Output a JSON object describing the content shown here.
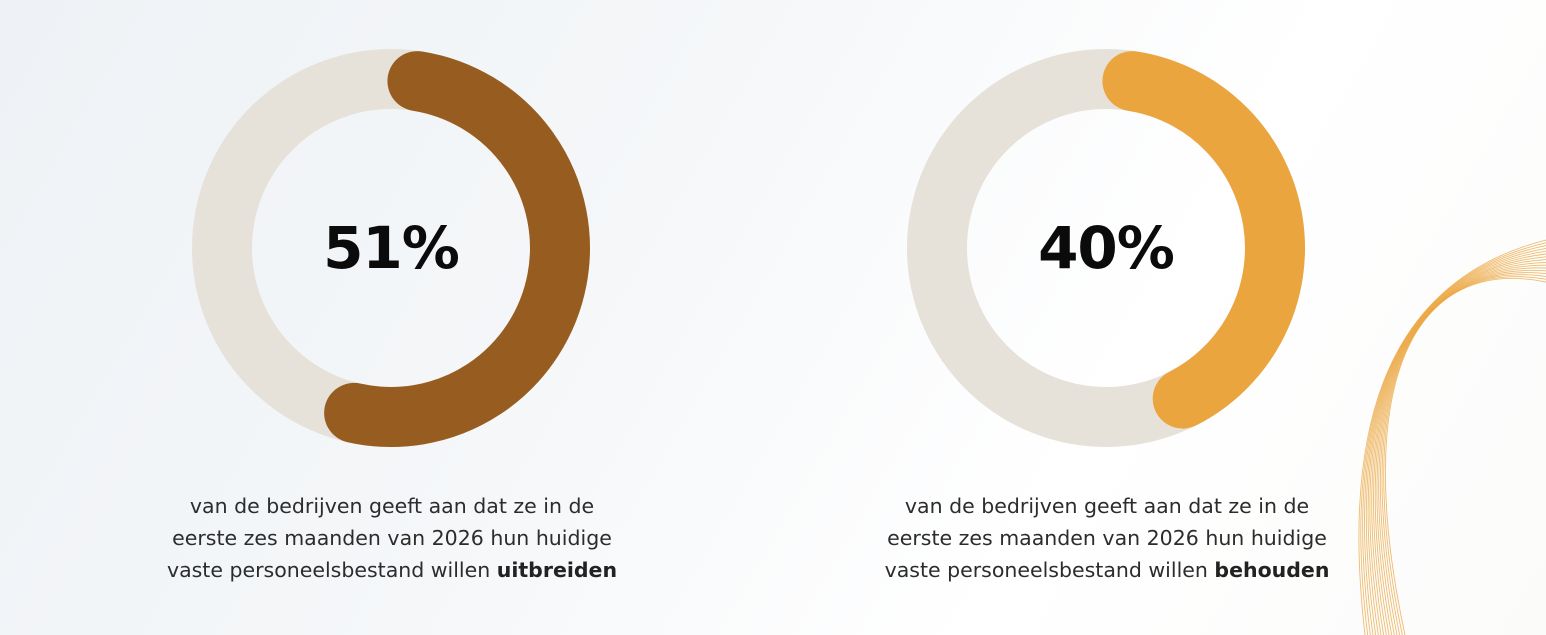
{
  "colors": {
    "track": "#e6e2da",
    "series_0": "#975c1f",
    "series_1": "#eba53f",
    "waves": "#eba53f"
  },
  "chart_data": [
    {
      "type": "pie",
      "style": "donut",
      "value": 51,
      "max": 100,
      "percent_label": "51%",
      "color": "#975c1f",
      "caption": {
        "text": "van de bedrijven geeft aan dat ze in de\neerste zes maanden van 2026 hun huidige\nvaste personeelsbestand willen ",
        "bold": "uitbreiden"
      }
    },
    {
      "type": "pie",
      "style": "donut",
      "value": 40,
      "max": 100,
      "percent_label": "40%",
      "color": "#eba53f",
      "caption": {
        "text": "van de bedrijven geeft aan dat ze in  de\neerste zes maanden van 2026 hun huidige\nvaste personeelsbestand willen ",
        "bold": "behouden"
      }
    }
  ]
}
